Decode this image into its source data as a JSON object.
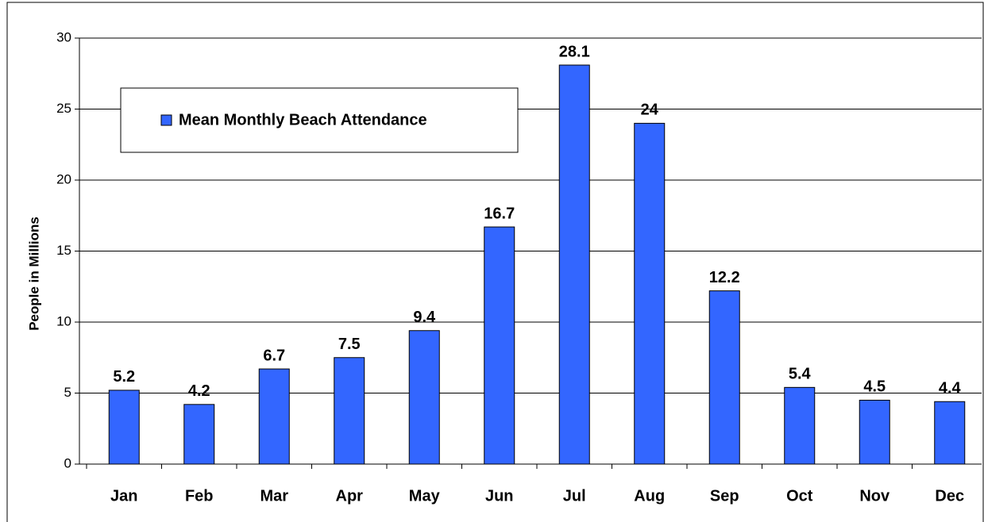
{
  "chart_data": {
    "type": "bar",
    "y_label": "People in Millions",
    "categories": [
      "Jan",
      "Feb",
      "Mar",
      "Apr",
      "May",
      "Jun",
      "Jul",
      "Aug",
      "Sep",
      "Oct",
      "Nov",
      "Dec"
    ],
    "series": [
      {
        "name": "Mean Monthly Beach Attendance",
        "color": "#3366ff",
        "values": [
          5.2,
          4.2,
          6.7,
          7.5,
          9.4,
          16.7,
          28.1,
          24,
          12.2,
          5.4,
          4.5,
          4.4
        ]
      }
    ],
    "ylim": [
      0,
      30
    ],
    "yticks": [
      0,
      5,
      10,
      15,
      20,
      25,
      30
    ],
    "grid": true,
    "legend": "upper left"
  }
}
